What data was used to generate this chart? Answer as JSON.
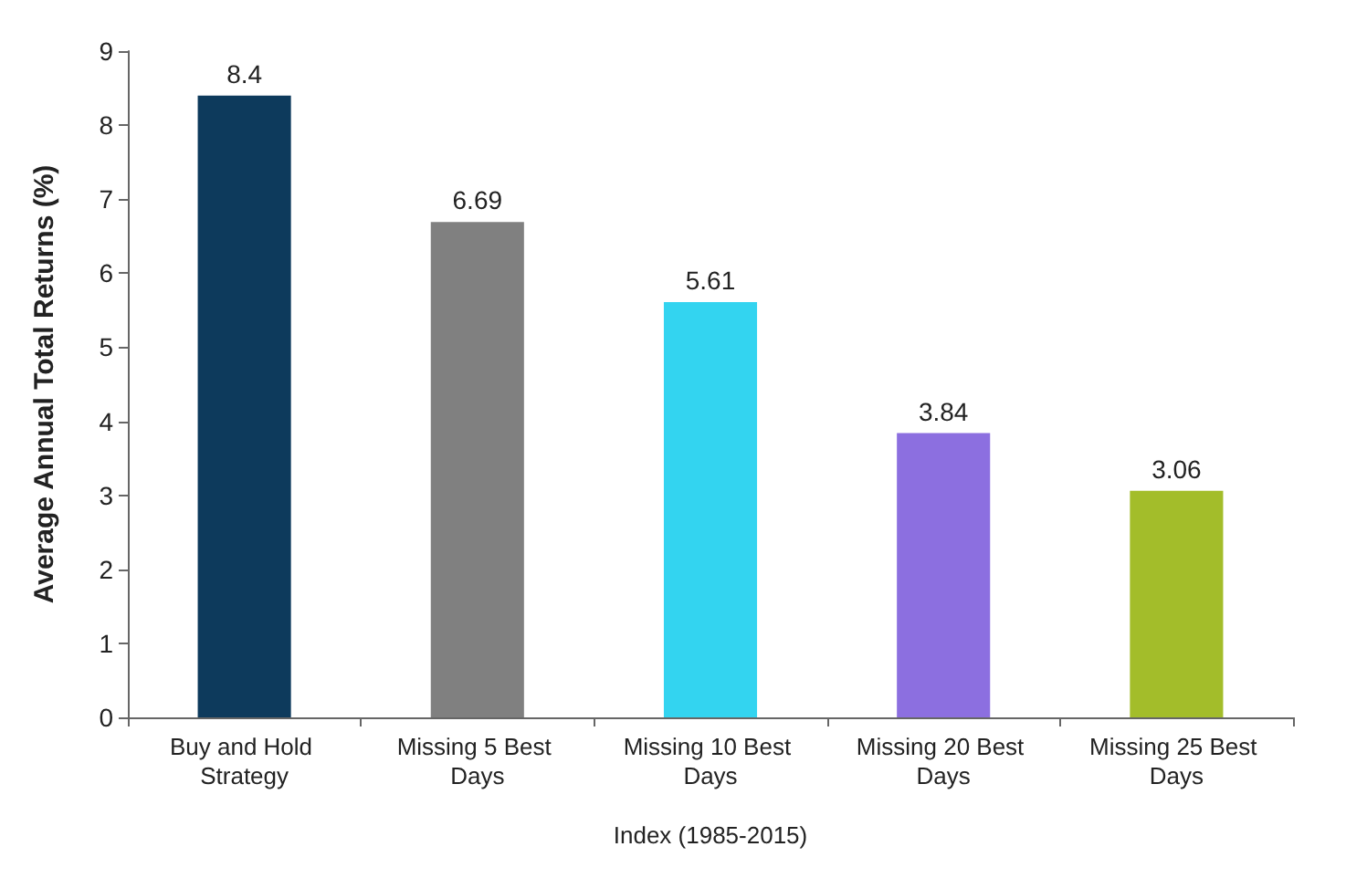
{
  "chart_data": {
    "type": "bar",
    "xlabel": "Index (1985-2015)",
    "ylabel": "Average Annual Total Returns (%)",
    "categories": [
      "Buy and Hold Strategy",
      "Missing 5 Best Days",
      "Missing 10 Best Days",
      "Missing 20 Best Days",
      "Missing 25 Best Days"
    ],
    "values": [
      8.4,
      6.69,
      5.61,
      3.84,
      3.06
    ],
    "colors": [
      "#0d3a5c",
      "#808080",
      "#33d4f0",
      "#8c6fe0",
      "#a3bd2a"
    ],
    "ylim": [
      0,
      9
    ],
    "yticks": [
      0,
      1,
      2,
      3,
      4,
      5,
      6,
      7,
      8,
      9
    ],
    "data_labels": true
  }
}
